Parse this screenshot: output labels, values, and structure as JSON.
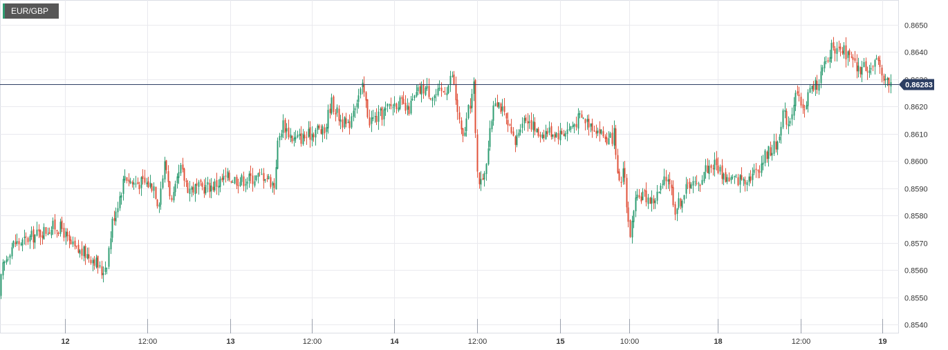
{
  "symbol": "EUR/GBP",
  "chart_data": {
    "type": "candlestick",
    "title": "EUR/GBP",
    "ylim": [
      0.8537,
      0.8659
    ],
    "y_ticks": [
      "0.8540",
      "0.8550",
      "0.8560",
      "0.8570",
      "0.8580",
      "0.8590",
      "0.8600",
      "0.8610",
      "0.8620",
      "0.8630",
      "0.8640",
      "0.8650"
    ],
    "x_tick_labels": [
      "12",
      "12:00",
      "13",
      "12:00",
      "14",
      "12:00",
      "15",
      "10:00",
      "18",
      "12:00",
      "19"
    ],
    "x_tick_bold": [
      true,
      false,
      true,
      false,
      true,
      false,
      true,
      false,
      true,
      false,
      true
    ],
    "last_price": "0.86283",
    "last_price_value": 0.86283,
    "colors": {
      "up": "#2e9c72",
      "down": "#e0513a",
      "last": "#2c3e63",
      "grid": "#e9e9ee"
    },
    "anchors": [
      {
        "t": 0,
        "p": 0.855
      },
      {
        "t": 4,
        "p": 0.856
      },
      {
        "t": 10,
        "p": 0.8564
      },
      {
        "t": 16,
        "p": 0.8568
      },
      {
        "t": 22,
        "p": 0.857
      },
      {
        "t": 32,
        "p": 0.857
      },
      {
        "t": 46,
        "p": 0.8572
      },
      {
        "t": 62,
        "p": 0.8574
      },
      {
        "t": 80,
        "p": 0.8576
      },
      {
        "t": 92,
        "p": 0.8575
      },
      {
        "t": 100,
        "p": 0.857
      },
      {
        "t": 112,
        "p": 0.8567
      },
      {
        "t": 125,
        "p": 0.8566
      },
      {
        "t": 138,
        "p": 0.8564
      },
      {
        "t": 148,
        "p": 0.8559
      },
      {
        "t": 156,
        "p": 0.8563
      },
      {
        "t": 164,
        "p": 0.8578
      },
      {
        "t": 174,
        "p": 0.8587
      },
      {
        "t": 182,
        "p": 0.8595
      },
      {
        "t": 192,
        "p": 0.8592
      },
      {
        "t": 210,
        "p": 0.8592
      },
      {
        "t": 224,
        "p": 0.8591
      },
      {
        "t": 230,
        "p": 0.8584
      },
      {
        "t": 240,
        "p": 0.86
      },
      {
        "t": 250,
        "p": 0.8584
      },
      {
        "t": 262,
        "p": 0.8597
      },
      {
        "t": 274,
        "p": 0.859
      },
      {
        "t": 290,
        "p": 0.859
      },
      {
        "t": 310,
        "p": 0.8591
      },
      {
        "t": 330,
        "p": 0.8594
      },
      {
        "t": 350,
        "p": 0.8593
      },
      {
        "t": 370,
        "p": 0.8594
      },
      {
        "t": 385,
        "p": 0.8595
      },
      {
        "t": 398,
        "p": 0.8591
      },
      {
        "t": 402,
        "p": 0.8605
      },
      {
        "t": 410,
        "p": 0.8614
      },
      {
        "t": 425,
        "p": 0.8608
      },
      {
        "t": 445,
        "p": 0.8609
      },
      {
        "t": 460,
        "p": 0.8612
      },
      {
        "t": 470,
        "p": 0.861
      },
      {
        "t": 480,
        "p": 0.8622
      },
      {
        "t": 492,
        "p": 0.8616
      },
      {
        "t": 505,
        "p": 0.8612
      },
      {
        "t": 512,
        "p": 0.862
      },
      {
        "t": 526,
        "p": 0.8627
      },
      {
        "t": 535,
        "p": 0.8615
      },
      {
        "t": 548,
        "p": 0.8616
      },
      {
        "t": 565,
        "p": 0.862
      },
      {
        "t": 578,
        "p": 0.8622
      },
      {
        "t": 590,
        "p": 0.8618
      },
      {
        "t": 605,
        "p": 0.8625
      },
      {
        "t": 615,
        "p": 0.8627
      },
      {
        "t": 628,
        "p": 0.8624
      },
      {
        "t": 640,
        "p": 0.8625
      },
      {
        "t": 650,
        "p": 0.8628
      },
      {
        "t": 655,
        "p": 0.8632
      },
      {
        "t": 662,
        "p": 0.862
      },
      {
        "t": 670,
        "p": 0.8607
      },
      {
        "t": 680,
        "p": 0.862
      },
      {
        "t": 687,
        "p": 0.8628
      },
      {
        "t": 690,
        "p": 0.86
      },
      {
        "t": 696,
        "p": 0.8591
      },
      {
        "t": 703,
        "p": 0.8598
      },
      {
        "t": 710,
        "p": 0.861
      },
      {
        "t": 716,
        "p": 0.8624
      },
      {
        "t": 724,
        "p": 0.8621
      },
      {
        "t": 735,
        "p": 0.8613
      },
      {
        "t": 746,
        "p": 0.8606
      },
      {
        "t": 755,
        "p": 0.8615
      },
      {
        "t": 765,
        "p": 0.8616
      },
      {
        "t": 778,
        "p": 0.861
      },
      {
        "t": 795,
        "p": 0.8611
      },
      {
        "t": 812,
        "p": 0.861
      },
      {
        "t": 825,
        "p": 0.8612
      },
      {
        "t": 840,
        "p": 0.8616
      },
      {
        "t": 855,
        "p": 0.8614
      },
      {
        "t": 868,
        "p": 0.8611
      },
      {
        "t": 882,
        "p": 0.8607
      },
      {
        "t": 890,
        "p": 0.861
      },
      {
        "t": 893,
        "p": 0.8595
      },
      {
        "t": 898,
        "p": 0.859
      },
      {
        "t": 904,
        "p": 0.86
      },
      {
        "t": 908,
        "p": 0.858
      },
      {
        "t": 913,
        "p": 0.8573
      },
      {
        "t": 920,
        "p": 0.8584
      },
      {
        "t": 930,
        "p": 0.8588
      },
      {
        "t": 945,
        "p": 0.8585
      },
      {
        "t": 958,
        "p": 0.859
      },
      {
        "t": 968,
        "p": 0.8595
      },
      {
        "t": 978,
        "p": 0.8582
      },
      {
        "t": 990,
        "p": 0.8588
      },
      {
        "t": 1000,
        "p": 0.8593
      },
      {
        "t": 1010,
        "p": 0.859
      },
      {
        "t": 1020,
        "p": 0.8597
      },
      {
        "t": 1035,
        "p": 0.8599
      },
      {
        "t": 1050,
        "p": 0.8594
      },
      {
        "t": 1065,
        "p": 0.8593
      },
      {
        "t": 1080,
        "p": 0.8594
      },
      {
        "t": 1095,
        "p": 0.8596
      },
      {
        "t": 1110,
        "p": 0.8603
      },
      {
        "t": 1125,
        "p": 0.8606
      },
      {
        "t": 1133,
        "p": 0.8618
      },
      {
        "t": 1142,
        "p": 0.8614
      },
      {
        "t": 1152,
        "p": 0.8625
      },
      {
        "t": 1162,
        "p": 0.8618
      },
      {
        "t": 1172,
        "p": 0.8626
      },
      {
        "t": 1182,
        "p": 0.8628
      },
      {
        "t": 1192,
        "p": 0.8634
      },
      {
        "t": 1200,
        "p": 0.8637
      },
      {
        "t": 1205,
        "p": 0.8645
      },
      {
        "t": 1212,
        "p": 0.8639
      },
      {
        "t": 1222,
        "p": 0.864
      },
      {
        "t": 1232,
        "p": 0.8637
      },
      {
        "t": 1242,
        "p": 0.8633
      },
      {
        "t": 1252,
        "p": 0.8635
      },
      {
        "t": 1262,
        "p": 0.8634
      },
      {
        "t": 1272,
        "p": 0.8636
      },
      {
        "t": 1280,
        "p": 0.8631
      },
      {
        "t": 1287,
        "p": 0.8628
      }
    ]
  }
}
